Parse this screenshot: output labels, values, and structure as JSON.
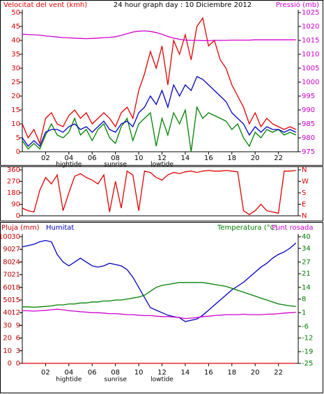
{
  "chart_data": [
    {
      "type": "line",
      "title": "24 hour graph day : 10 Diciembre 2012",
      "ylabel": "Velocitat del vent (kmh)",
      "y2label": "Pressió (mb)",
      "x": [
        0,
        0.5,
        1,
        1.5,
        2,
        2.5,
        3,
        3.5,
        4,
        4.5,
        5,
        5.5,
        6,
        6.5,
        7,
        7.5,
        8,
        8.5,
        9,
        9.5,
        10,
        10.5,
        11,
        11.5,
        12,
        12.5,
        13,
        13.5,
        14,
        14.5,
        15,
        15.5,
        16,
        16.5,
        17,
        17.5,
        18,
        18.5,
        19,
        19.5,
        20,
        20.5,
        21,
        21.5,
        22,
        22.5,
        23,
        23.5
      ],
      "xlim": [
        0,
        23.7
      ],
      "xticks": [
        {
          "value": 2,
          "label": "02"
        },
        {
          "value": 4,
          "label": "04"
        },
        {
          "value": 6,
          "label": "06"
        },
        {
          "value": 8,
          "label": "08"
        },
        {
          "value": 10,
          "label": "10"
        },
        {
          "value": 12,
          "label": "12"
        },
        {
          "value": 14,
          "label": "14"
        },
        {
          "value": 16,
          "label": "16"
        },
        {
          "value": 18,
          "label": "18"
        },
        {
          "value": 20,
          "label": "20"
        },
        {
          "value": 22,
          "label": "22"
        }
      ],
      "markers": [
        {
          "label": "hightide",
          "x": 4
        },
        {
          "label": "sunrise",
          "x": 8
        },
        {
          "label": "lowtide",
          "x": 12
        }
      ],
      "ylim": [
        0,
        50
      ],
      "yticks": [
        0,
        5,
        10,
        15,
        20,
        25,
        30,
        35,
        40,
        45,
        50
      ],
      "ytick_color": "#e00000",
      "y2lim": [
        975,
        1025
      ],
      "y2ticks": [
        975,
        980,
        985,
        990,
        995,
        1000,
        1005,
        1010,
        1015,
        1020,
        1025
      ],
      "y2tick_color": "#d000d0",
      "series": [
        {
          "color": "#e00000",
          "axis": "y",
          "values": [
            10,
            5,
            8,
            3,
            12,
            14,
            10,
            9,
            13,
            15,
            12,
            14,
            10,
            12,
            14,
            12,
            9,
            14,
            16,
            12,
            22,
            28,
            36,
            30,
            38,
            24,
            40,
            35,
            42,
            33,
            45,
            48,
            38,
            40,
            33,
            30,
            24,
            20,
            16,
            10,
            14,
            9,
            12,
            10,
            9,
            8,
            9,
            8
          ]
        },
        {
          "color": "#008000",
          "axis": "y",
          "values": [
            4,
            1,
            3,
            1,
            6,
            10,
            6,
            5,
            7,
            12,
            6,
            8,
            4,
            8,
            10,
            5,
            3,
            9,
            12,
            4,
            10,
            12,
            14,
            2,
            12,
            6,
            14,
            10,
            15,
            0,
            16,
            12,
            14,
            13,
            12,
            11,
            8,
            10,
            5,
            2,
            7,
            5,
            8,
            7,
            8,
            6,
            7,
            6
          ]
        },
        {
          "color": "#0000c0",
          "axis": "y",
          "values": [
            5,
            2,
            4,
            2,
            7,
            8,
            8,
            7,
            9,
            10,
            8,
            9,
            7,
            9,
            11,
            8,
            7,
            10,
            11,
            9,
            14,
            16,
            20,
            17,
            22,
            16,
            24,
            20,
            24,
            22,
            27,
            26,
            24,
            22,
            20,
            18,
            14,
            12,
            10,
            6,
            9,
            7,
            9,
            8,
            8,
            7,
            8,
            7
          ]
        },
        {
          "color": "#d000d0",
          "axis": "y2",
          "values": [
            1017.2,
            1017.1,
            1017,
            1016.9,
            1016.6,
            1016.4,
            1016.2,
            1016,
            1015.9,
            1015.8,
            1015.7,
            1015.6,
            1015.7,
            1015.8,
            1016,
            1016.1,
            1016.3,
            1016.8,
            1017.4,
            1018,
            1018.3,
            1018.4,
            1018.2,
            1017.8,
            1017.2,
            1016.4,
            1015.8,
            1015.4,
            1015.1,
            1015,
            1015,
            1014.9,
            1014.9,
            1015,
            1015,
            1015,
            1015.1,
            1015.1,
            1015.1,
            1015.1,
            1015.2,
            1015.2,
            1015.2,
            1015.2,
            1015.2,
            1015.2,
            1015.2,
            1015.2
          ]
        }
      ]
    },
    {
      "type": "line",
      "x": [
        0,
        0.5,
        1,
        1.5,
        2,
        2.5,
        3,
        3.5,
        4,
        4.5,
        5,
        5.5,
        6,
        6.5,
        7,
        7.5,
        8,
        8.5,
        9,
        9.5,
        10,
        10.5,
        11,
        11.5,
        12,
        12.5,
        13,
        13.5,
        14,
        14.5,
        15,
        15.5,
        16,
        16.5,
        17,
        17.5,
        18,
        18.5,
        19,
        19.5,
        20,
        20.5,
        21,
        21.5,
        22,
        22.5,
        23,
        23.5
      ],
      "xlim": [
        0,
        23.7
      ],
      "ylim": [
        0,
        360
      ],
      "yticks": [
        360,
        270,
        180,
        90,
        0
      ],
      "ytick_color": "#e00000",
      "y2lim": [
        0,
        360
      ],
      "y2ticks": [
        {
          "value": 360,
          "label": "N"
        },
        {
          "value": 270,
          "label": "W"
        },
        {
          "value": 180,
          "label": "S"
        },
        {
          "value": 90,
          "label": "E"
        },
        {
          "value": 0,
          "label": "N"
        }
      ],
      "y2tick_color": "#e00000",
      "series": [
        {
          "color": "#e00000",
          "axis": "y",
          "values": [
            60,
            40,
            30,
            200,
            300,
            250,
            320,
            40,
            180,
            310,
            330,
            300,
            280,
            250,
            320,
            30,
            270,
            60,
            350,
            320,
            40,
            350,
            340,
            300,
            280,
            320,
            340,
            330,
            345,
            350,
            340,
            350,
            355,
            350,
            350,
            355,
            350,
            345,
            40,
            10,
            40,
            90,
            40,
            30,
            20,
            350,
            350,
            355
          ]
        }
      ]
    },
    {
      "type": "line",
      "y3label": "Pluja (mm)",
      "ylabel": "Humitat",
      "y2label": "Temperatura (°C)",
      "y2label2": "Punt rosada",
      "x": [
        0,
        0.5,
        1,
        1.5,
        2,
        2.5,
        3,
        3.5,
        4,
        4.5,
        5,
        5.5,
        6,
        6.5,
        7,
        7.5,
        8,
        8.5,
        9,
        9.5,
        10,
        10.5,
        11,
        11.5,
        12,
        12.5,
        13,
        13.5,
        14,
        14.5,
        15,
        15.5,
        16,
        16.5,
        17,
        17.5,
        18,
        18.5,
        19,
        19.5,
        20,
        20.5,
        21,
        21.5,
        22,
        22.5,
        23,
        23.5
      ],
      "xlim": [
        0,
        23.7
      ],
      "xticks": [
        {
          "value": 2,
          "label": "02"
        },
        {
          "value": 4,
          "label": "04"
        },
        {
          "value": 6,
          "label": "06"
        },
        {
          "value": 8,
          "label": "08"
        },
        {
          "value": 10,
          "label": "10"
        },
        {
          "value": 12,
          "label": "12"
        },
        {
          "value": 14,
          "label": "14"
        },
        {
          "value": 16,
          "label": "16"
        },
        {
          "value": 18,
          "label": "18"
        },
        {
          "value": 20,
          "label": "20"
        },
        {
          "value": 22,
          "label": "22"
        }
      ],
      "markers": [
        {
          "label": "hightide",
          "x": 4
        },
        {
          "label": "sunrise",
          "x": 8
        },
        {
          "label": "lowtide",
          "x": 12
        }
      ],
      "ylim": [
        0,
        100
      ],
      "yticks": [
        0,
        10,
        20,
        30,
        40,
        50,
        60,
        70,
        80,
        90,
        100
      ],
      "ytick_color": "#c00000",
      "y3lim": [
        0,
        30
      ],
      "y3ticks": [
        0,
        3,
        6,
        9,
        12,
        15,
        18,
        21,
        24,
        27,
        30
      ],
      "y3tick_color": "#c00000",
      "y2lim": [
        -25,
        40
      ],
      "y2ticks": [
        -25,
        -19,
        -12,
        -6,
        1,
        8,
        14,
        21,
        27,
        34,
        40
      ],
      "y2tick_color": "#008000",
      "series": [
        {
          "color": "#e00000",
          "axis": "y3",
          "values": [
            0,
            0,
            0,
            0,
            0,
            0,
            0,
            0,
            0,
            0,
            0,
            0,
            0,
            0,
            0,
            0,
            0,
            0,
            0,
            0,
            0,
            0,
            0,
            0,
            0,
            0,
            0,
            0,
            0,
            0,
            0,
            0,
            0,
            0,
            0,
            0,
            0,
            0,
            0,
            0,
            0,
            0,
            0,
            0,
            0,
            0,
            0,
            0
          ]
        },
        {
          "color": "#0000c0",
          "axis": "y",
          "values": [
            92,
            93,
            94,
            96,
            97,
            96,
            86,
            80,
            77,
            80,
            83,
            80,
            77,
            76,
            77,
            79,
            78,
            77,
            74,
            68,
            60,
            52,
            44,
            42,
            40,
            38,
            37,
            36,
            33,
            34,
            35,
            38,
            42,
            46,
            50,
            54,
            58,
            61,
            64,
            68,
            72,
            76,
            79,
            83,
            86,
            88,
            91,
            95
          ]
        },
        {
          "color": "#008000",
          "axis": "y2",
          "values": [
            4,
            4,
            3.8,
            4,
            4.2,
            4.5,
            5,
            5,
            5.5,
            5.5,
            6,
            6,
            6.5,
            6.5,
            7,
            7,
            7.5,
            7.5,
            8,
            8.5,
            9,
            10,
            12,
            14,
            15,
            15.5,
            16,
            16.5,
            16.5,
            16.5,
            16.5,
            16.5,
            16,
            15.5,
            15,
            14.5,
            13.5,
            12.5,
            11.5,
            10.5,
            9.5,
            8.5,
            7.5,
            6.5,
            5.5,
            5,
            4.5,
            4.2
          ]
        },
        {
          "color": "#d000d0",
          "axis": "y2",
          "values": [
            2,
            2,
            1.8,
            2,
            2.2,
            2.5,
            2.8,
            2.5,
            2,
            1.8,
            1.5,
            1.3,
            1,
            1,
            0.8,
            0.5,
            0.5,
            0.3,
            0,
            0,
            -0.3,
            -0.5,
            -0.5,
            -0.8,
            -1,
            -1,
            -1.2,
            -1.5,
            -2,
            -1.8,
            -1.5,
            -1,
            -0.8,
            -0.5,
            -0.3,
            0,
            0,
            0,
            0.2,
            0,
            0,
            0,
            0.2,
            0.3,
            0.5,
            0.8,
            1,
            1.2
          ]
        }
      ]
    }
  ]
}
